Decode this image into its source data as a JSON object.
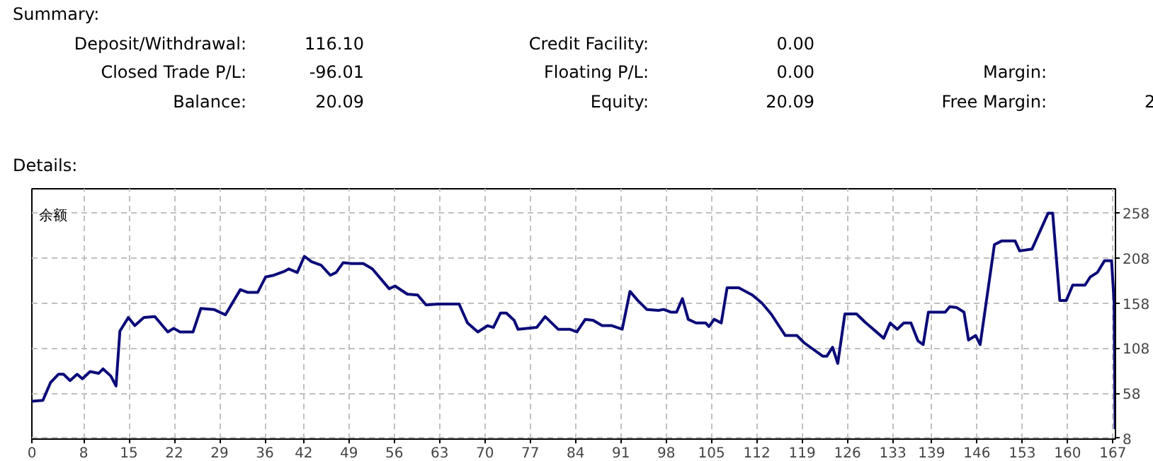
{
  "chart_data": {
    "type": "line",
    "title": "余额",
    "annotations": [
      "Summary:",
      "Deposit/Withdrawal:",
      "116.10",
      "Credit Facility:",
      "0.00",
      "Closed Trade P/L:",
      "-96.01",
      "Floating P/L:",
      "0.00",
      "Margin:",
      "Balance:",
      "20.09",
      "Equity:",
      "20.09",
      "Free Margin:",
      "2",
      "Details:"
    ],
    "x": [
      0,
      1.7,
      2.9,
      4.1,
      4.9,
      5.9,
      7.0,
      7.8,
      9.0,
      10.3,
      11.0,
      12.2,
      13.0,
      13.6,
      14.9,
      15.9,
      17.3,
      19.0,
      21.0,
      21.9,
      22.9,
      24.9,
      26.1,
      28.1,
      29.9,
      32.2,
      33.3,
      34.9,
      36.1,
      37.4,
      38.9,
      39.7,
      41.0,
      42.1,
      43.2,
      44.7,
      46.1,
      47.0,
      48.1,
      49.4,
      51.2,
      52.6,
      55.2,
      56.1,
      58.0,
      59.6,
      60.9,
      62.8,
      66.0,
      67.3,
      68.9,
      70.4,
      71.3,
      72.4,
      73.3,
      74.5,
      75.1,
      78.0,
      79.3,
      81.3,
      83.1,
      84.2,
      85.5,
      86.7,
      88.1,
      89.6,
      91.2,
      92.4,
      93.6,
      95.0,
      96.8,
      97.6,
      98.7,
      99.6,
      100.5,
      101.4,
      102.6,
      104.1,
      104.6,
      105.4,
      106.5,
      107.4,
      109.2,
      111.3,
      112.8,
      114.2,
      116.4,
      118.2,
      119.3,
      122.2,
      122.8,
      123.7,
      124.5,
      125.6,
      127.4,
      128.7,
      131.6,
      132.6,
      133.7,
      134.7,
      135.8,
      136.9,
      137.7,
      138.5,
      141.1,
      141.8,
      142.9,
      144.0,
      144.7,
      145.8,
      146.5,
      148.7,
      149.8,
      151.9,
      152.6,
      154.5,
      157.0,
      157.7,
      158.8,
      159.8,
      160.8,
      162.7,
      163.5,
      164.6,
      165.7,
      166.8,
      167.2,
      167.3,
      167.35
    ],
    "series": [
      {
        "color": "#0a0a78",
        "values": [
          49,
          50,
          70,
          79,
          79,
          72,
          79,
          74,
          82,
          80,
          85,
          77,
          66,
          127,
          142,
          133,
          142,
          143,
          126,
          130,
          126,
          126,
          152,
          151,
          145,
          173,
          170,
          170,
          187,
          189,
          193,
          196,
          192,
          210,
          204,
          200,
          189,
          192,
          203,
          202,
          202,
          196,
          174,
          177,
          168,
          167,
          156,
          157,
          157,
          136,
          126,
          133,
          131,
          147,
          147,
          139,
          129,
          131,
          143,
          129,
          129,
          126,
          140,
          139,
          133,
          133,
          129,
          171,
          161,
          151,
          150,
          151,
          148,
          148,
          163,
          140,
          136,
          136,
          132,
          140,
          136,
          175,
          175,
          167,
          158,
          146,
          122,
          122,
          114,
          99,
          99,
          109,
          91,
          146,
          146,
          137,
          119,
          136,
          129,
          136,
          136,
          116,
          112,
          148,
          148,
          154,
          153,
          148,
          117,
          122,
          112,
          223,
          227,
          227,
          216,
          218,
          258,
          258,
          161,
          161,
          178,
          178,
          187,
          192,
          205,
          205,
          158,
          64,
          18
        ]
      }
    ],
    "xlim": [
      0,
      167.4
    ],
    "ylim": [
      7,
      285
    ],
    "xticks": [
      0,
      8,
      15,
      22,
      29,
      36,
      42,
      49,
      56,
      63,
      70,
      77,
      84,
      91,
      98,
      105,
      112,
      119,
      126,
      133,
      139,
      146,
      153,
      160,
      167
    ],
    "yticks": [
      8,
      58,
      108,
      158,
      208,
      258
    ],
    "grid": true,
    "marker": "none",
    "line_style": "solid"
  }
}
